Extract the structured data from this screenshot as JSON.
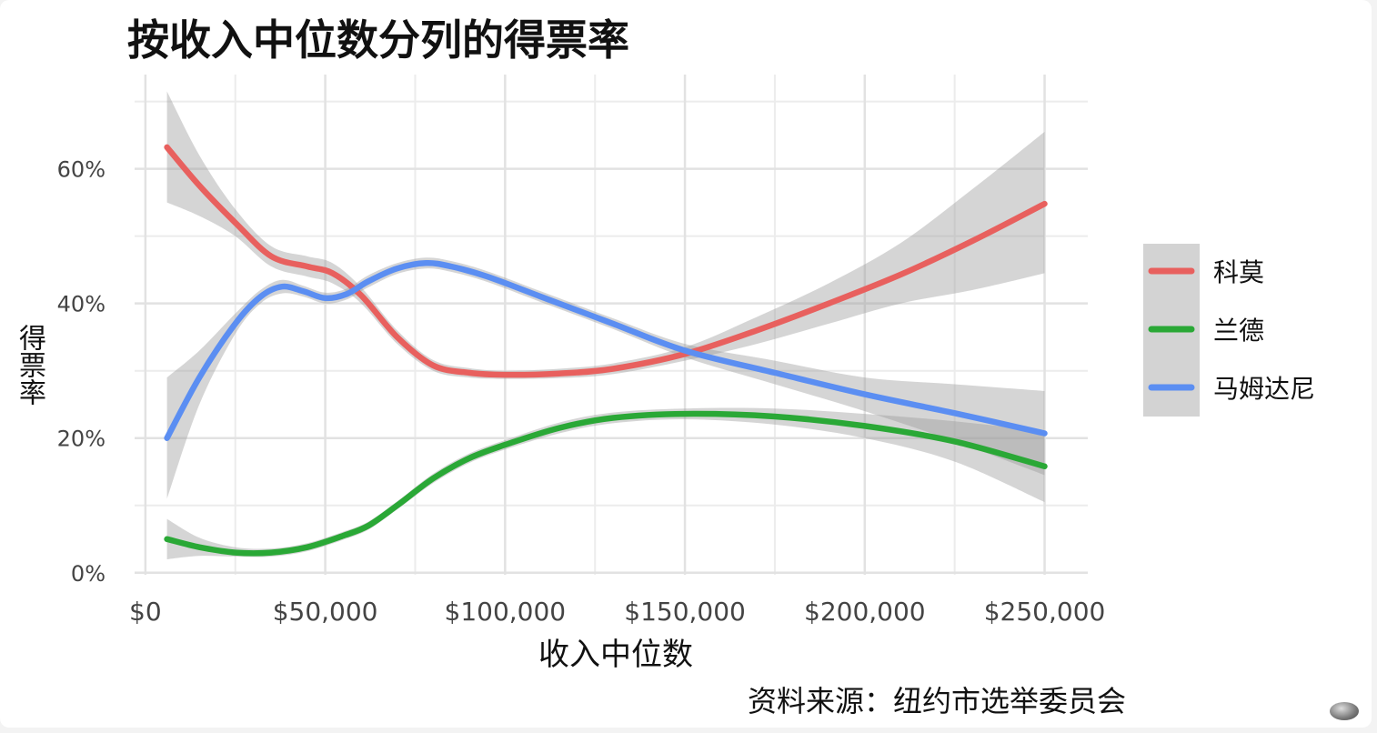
{
  "chart_data": {
    "type": "line",
    "title": "按收入中位数分列的得票率",
    "xlabel": "收入中位数",
    "ylabel": "得票率",
    "source": "资料来源：纽约市选举委员会",
    "xlim": [
      -3000,
      262000
    ],
    "ylim": [
      -0.003,
      0.74
    ],
    "x_ticks": [
      0,
      50000,
      100000,
      150000,
      200000,
      250000
    ],
    "x_tick_labels": [
      "$0",
      "$50,000",
      "$100,000",
      "$150,000",
      "$200,000",
      "$250,000"
    ],
    "y_ticks": [
      0,
      0.2,
      0.4,
      0.6
    ],
    "y_tick_labels": [
      "0%",
      "20%",
      "40%",
      "60%"
    ],
    "grid": true,
    "legend_position": "right",
    "series": [
      {
        "name": "科莫",
        "color": "#e8605e",
        "x": [
          6000,
          15000,
          25000,
          35000,
          45000,
          52000,
          60000,
          70000,
          80000,
          90000,
          100000,
          115000,
          130000,
          150000,
          170000,
          190000,
          210000,
          230000,
          250000
        ],
        "y": [
          0.632,
          0.575,
          0.52,
          0.47,
          0.455,
          0.445,
          0.412,
          0.35,
          0.308,
          0.297,
          0.294,
          0.296,
          0.303,
          0.325,
          0.36,
          0.4,
          0.443,
          0.493,
          0.548
        ],
        "ci_lower": [
          0.55,
          0.53,
          0.5,
          0.455,
          0.44,
          0.43,
          0.4,
          0.34,
          0.3,
          0.29,
          0.288,
          0.289,
          0.295,
          0.315,
          0.34,
          0.37,
          0.4,
          0.42,
          0.445
        ],
        "ci_upper": [
          0.715,
          0.62,
          0.54,
          0.485,
          0.47,
          0.46,
          0.424,
          0.36,
          0.316,
          0.304,
          0.3,
          0.303,
          0.311,
          0.335,
          0.38,
          0.43,
          0.49,
          0.57,
          0.655
        ]
      },
      {
        "name": "兰德",
        "color": "#2aa836",
        "x": [
          6000,
          15000,
          25000,
          35000,
          45000,
          55000,
          62000,
          70000,
          80000,
          90000,
          100000,
          115000,
          130000,
          150000,
          175000,
          200000,
          225000,
          250000
        ],
        "y": [
          0.05,
          0.038,
          0.03,
          0.03,
          0.038,
          0.055,
          0.07,
          0.1,
          0.14,
          0.17,
          0.19,
          0.215,
          0.23,
          0.236,
          0.232,
          0.218,
          0.195,
          0.158
        ],
        "ci_lower": [
          0.02,
          0.025,
          0.024,
          0.024,
          0.032,
          0.049,
          0.064,
          0.094,
          0.133,
          0.163,
          0.183,
          0.207,
          0.222,
          0.228,
          0.22,
          0.2,
          0.165,
          0.105
        ],
        "ci_upper": [
          0.08,
          0.052,
          0.038,
          0.036,
          0.044,
          0.061,
          0.076,
          0.106,
          0.147,
          0.177,
          0.197,
          0.223,
          0.238,
          0.244,
          0.244,
          0.236,
          0.225,
          0.21
        ]
      },
      {
        "name": "马姆达尼",
        "color": "#5b8ef2",
        "x": [
          6000,
          15000,
          25000,
          32000,
          38000,
          44000,
          50000,
          56000,
          62000,
          70000,
          78000,
          85000,
          95000,
          110000,
          130000,
          150000,
          175000,
          200000,
          225000,
          250000
        ],
        "y": [
          0.2,
          0.29,
          0.37,
          0.41,
          0.425,
          0.418,
          0.408,
          0.414,
          0.433,
          0.452,
          0.46,
          0.455,
          0.44,
          0.41,
          0.37,
          0.33,
          0.297,
          0.265,
          0.237,
          0.207
        ],
        "ci_lower": [
          0.11,
          0.25,
          0.355,
          0.4,
          0.415,
          0.41,
          0.4,
          0.406,
          0.424,
          0.444,
          0.452,
          0.447,
          0.432,
          0.402,
          0.362,
          0.32,
          0.28,
          0.24,
          0.195,
          0.145
        ],
        "ci_upper": [
          0.29,
          0.33,
          0.385,
          0.42,
          0.435,
          0.426,
          0.416,
          0.422,
          0.442,
          0.46,
          0.468,
          0.463,
          0.448,
          0.418,
          0.378,
          0.34,
          0.315,
          0.29,
          0.28,
          0.27
        ]
      }
    ]
  }
}
